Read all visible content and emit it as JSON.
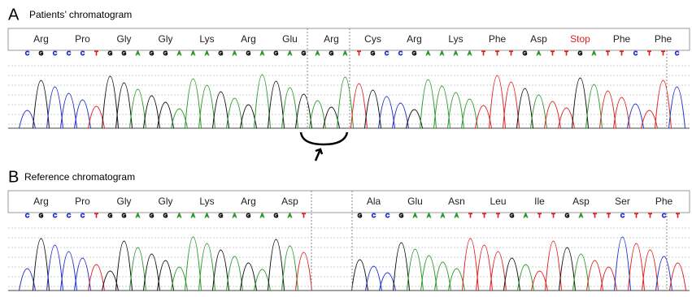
{
  "panels": [
    {
      "letter": "A",
      "title": "Patients’ chromatogram",
      "segments": [
        {
          "residues": [
            "Arg",
            "Pro",
            "Gly",
            "Gly",
            "Lys",
            "Arg",
            "Glu",
            "Arg",
            "Cys",
            "Arg",
            "Lys",
            "Phe",
            "Asp",
            "Stop",
            "Phe",
            "Phe"
          ],
          "bases": [
            "C",
            "G",
            "C",
            "C",
            "C",
            "T",
            "G",
            "G",
            "A",
            "G",
            "G",
            "A",
            "A",
            "A",
            "G",
            "A",
            "G",
            "A",
            "G",
            "A",
            "G",
            "A",
            "G",
            "A",
            "T",
            "G",
            "C",
            "C",
            "G",
            "A",
            "A",
            "A",
            "A",
            "T",
            "T",
            "T",
            "G",
            "A",
            "T",
            "T",
            "G",
            "A",
            "T",
            "T",
            "C",
            "T",
            "T",
            "C"
          ]
        }
      ]
    },
    {
      "letter": "B",
      "title": "Reference chromatogram",
      "segments": [
        {
          "residues": [
            "Arg",
            "Pro",
            "Gly",
            "Gly",
            "Lys",
            "Arg",
            "Asp"
          ],
          "bases": [
            "C",
            "G",
            "C",
            "C",
            "C",
            "T",
            "G",
            "G",
            "A",
            "G",
            "G",
            "A",
            "A",
            "A",
            "G",
            "A",
            "G",
            "A",
            "G",
            "A",
            "T"
          ]
        },
        {
          "residues": [
            "Ala",
            "Glu",
            "Asn",
            "Leu",
            "Ile",
            "Asp",
            "Ser",
            "Phe"
          ],
          "bases": [
            "G",
            "C",
            "C",
            "G",
            "A",
            "A",
            "A",
            "A",
            "T",
            "T",
            "T",
            "G",
            "A",
            "T",
            "T",
            "G",
            "A",
            "T",
            "T",
            "C",
            "T",
            "T",
            "C",
            "T"
          ]
        }
      ]
    }
  ]
}
